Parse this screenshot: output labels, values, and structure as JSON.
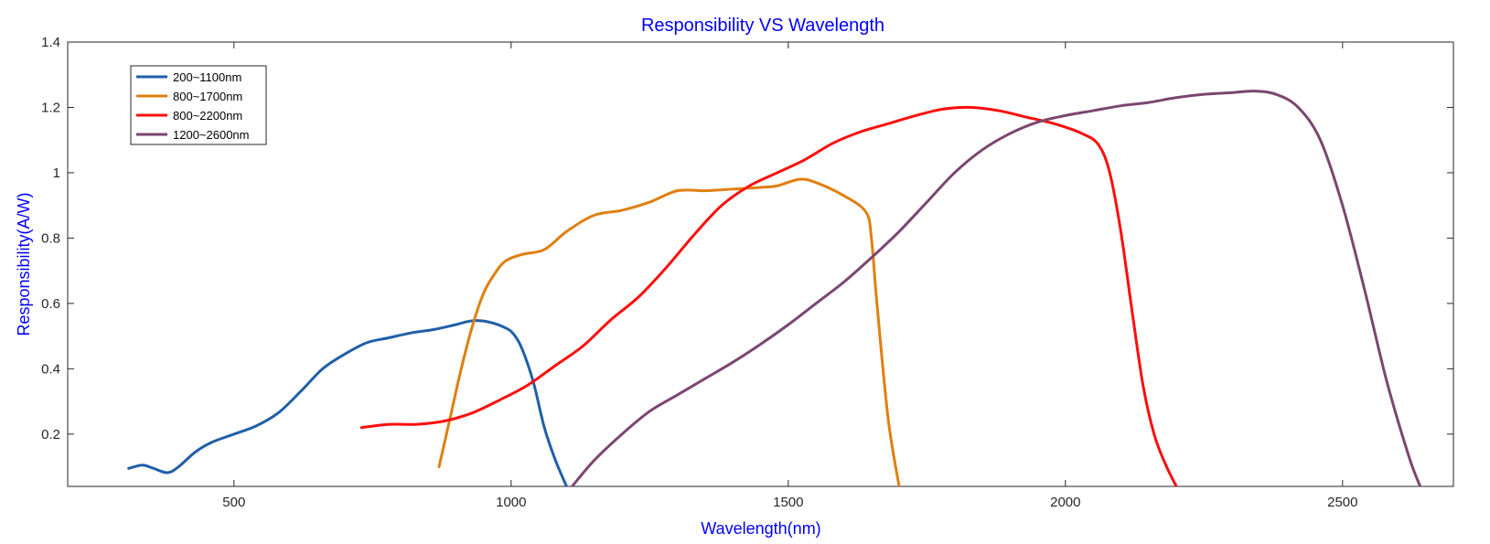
{
  "chart_data": {
    "type": "line",
    "title": "Responsibility VS Wavelength",
    "xlabel": "Wavelength(nm)",
    "ylabel": "Responsibility(A/W)",
    "xlim": [
      200,
      2700
    ],
    "ylim": [
      0.04,
      1.4
    ],
    "xticks": [
      500,
      1000,
      1500,
      2000,
      2500
    ],
    "yticks": [
      0.2,
      0.4,
      0.6,
      0.8,
      1,
      1.2,
      1.4
    ],
    "xtick_labels": [
      "500",
      "1000",
      "1500",
      "2000",
      "2500"
    ],
    "ytick_labels": [
      "0.2",
      "0.4",
      "0.6",
      "0.8",
      "1",
      "1.2",
      "1.4"
    ],
    "grid": false,
    "legend_position": "top-left",
    "series": [
      {
        "name": "200~1100nm",
        "color": "#1f5fa8",
        "x": [
          310,
          335,
          355,
          380,
          400,
          430,
          460,
          500,
          540,
          580,
          620,
          660,
          700,
          740,
          780,
          820,
          860,
          900,
          930,
          960,
          990,
          1005,
          1020,
          1040,
          1060,
          1080,
          1100
        ],
        "y": [
          0.095,
          0.105,
          0.095,
          0.082,
          0.1,
          0.145,
          0.175,
          0.2,
          0.225,
          0.265,
          0.33,
          0.4,
          0.445,
          0.48,
          0.495,
          0.51,
          0.52,
          0.535,
          0.547,
          0.543,
          0.525,
          0.505,
          0.46,
          0.36,
          0.22,
          0.12,
          0.04
        ]
      },
      {
        "name": "800~1700nm",
        "color": "#e07f10",
        "x": [
          870,
          890,
          910,
          930,
          950,
          970,
          990,
          1020,
          1060,
          1100,
          1150,
          1200,
          1250,
          1300,
          1350,
          1400,
          1450,
          1480,
          1520,
          1550,
          1600,
          1640,
          1650,
          1660,
          1680,
          1700
        ],
        "y": [
          0.1,
          0.25,
          0.4,
          0.53,
          0.63,
          0.69,
          0.73,
          0.75,
          0.765,
          0.82,
          0.87,
          0.885,
          0.91,
          0.945,
          0.945,
          0.95,
          0.955,
          0.96,
          0.98,
          0.97,
          0.93,
          0.88,
          0.8,
          0.6,
          0.25,
          0.04
        ]
      },
      {
        "name": "800~2200nm",
        "color": "#ff0d0d",
        "x": [
          730,
          780,
          830,
          880,
          930,
          980,
          1030,
          1080,
          1130,
          1180,
          1230,
          1280,
          1330,
          1380,
          1430,
          1480,
          1530,
          1580,
          1630,
          1680,
          1730,
          1780,
          1830,
          1880,
          1930,
          1980,
          2030,
          2060,
          2080,
          2100,
          2120,
          2140,
          2160,
          2180,
          2200
        ],
        "y": [
          0.22,
          0.23,
          0.23,
          0.24,
          0.265,
          0.305,
          0.35,
          0.41,
          0.47,
          0.55,
          0.62,
          0.71,
          0.81,
          0.9,
          0.96,
          1.0,
          1.04,
          1.09,
          1.125,
          1.15,
          1.175,
          1.195,
          1.2,
          1.19,
          1.17,
          1.15,
          1.12,
          1.085,
          1.0,
          0.82,
          0.58,
          0.35,
          0.2,
          0.11,
          0.04
        ]
      },
      {
        "name": "1200~2600nm",
        "color": "#7b4670",
        "x": [
          1110,
          1150,
          1200,
          1250,
          1300,
          1350,
          1400,
          1450,
          1500,
          1550,
          1600,
          1650,
          1700,
          1750,
          1800,
          1850,
          1900,
          1950,
          2000,
          2050,
          2100,
          2150,
          2200,
          2250,
          2300,
          2340,
          2380,
          2420,
          2460,
          2500,
          2540,
          2580,
          2620,
          2640
        ],
        "y": [
          0.04,
          0.12,
          0.2,
          0.27,
          0.32,
          0.37,
          0.42,
          0.475,
          0.535,
          0.6,
          0.665,
          0.74,
          0.82,
          0.91,
          1.0,
          1.07,
          1.12,
          1.155,
          1.175,
          1.19,
          1.205,
          1.215,
          1.23,
          1.24,
          1.245,
          1.25,
          1.24,
          1.2,
          1.1,
          0.9,
          0.64,
          0.36,
          0.13,
          0.04
        ]
      }
    ]
  }
}
